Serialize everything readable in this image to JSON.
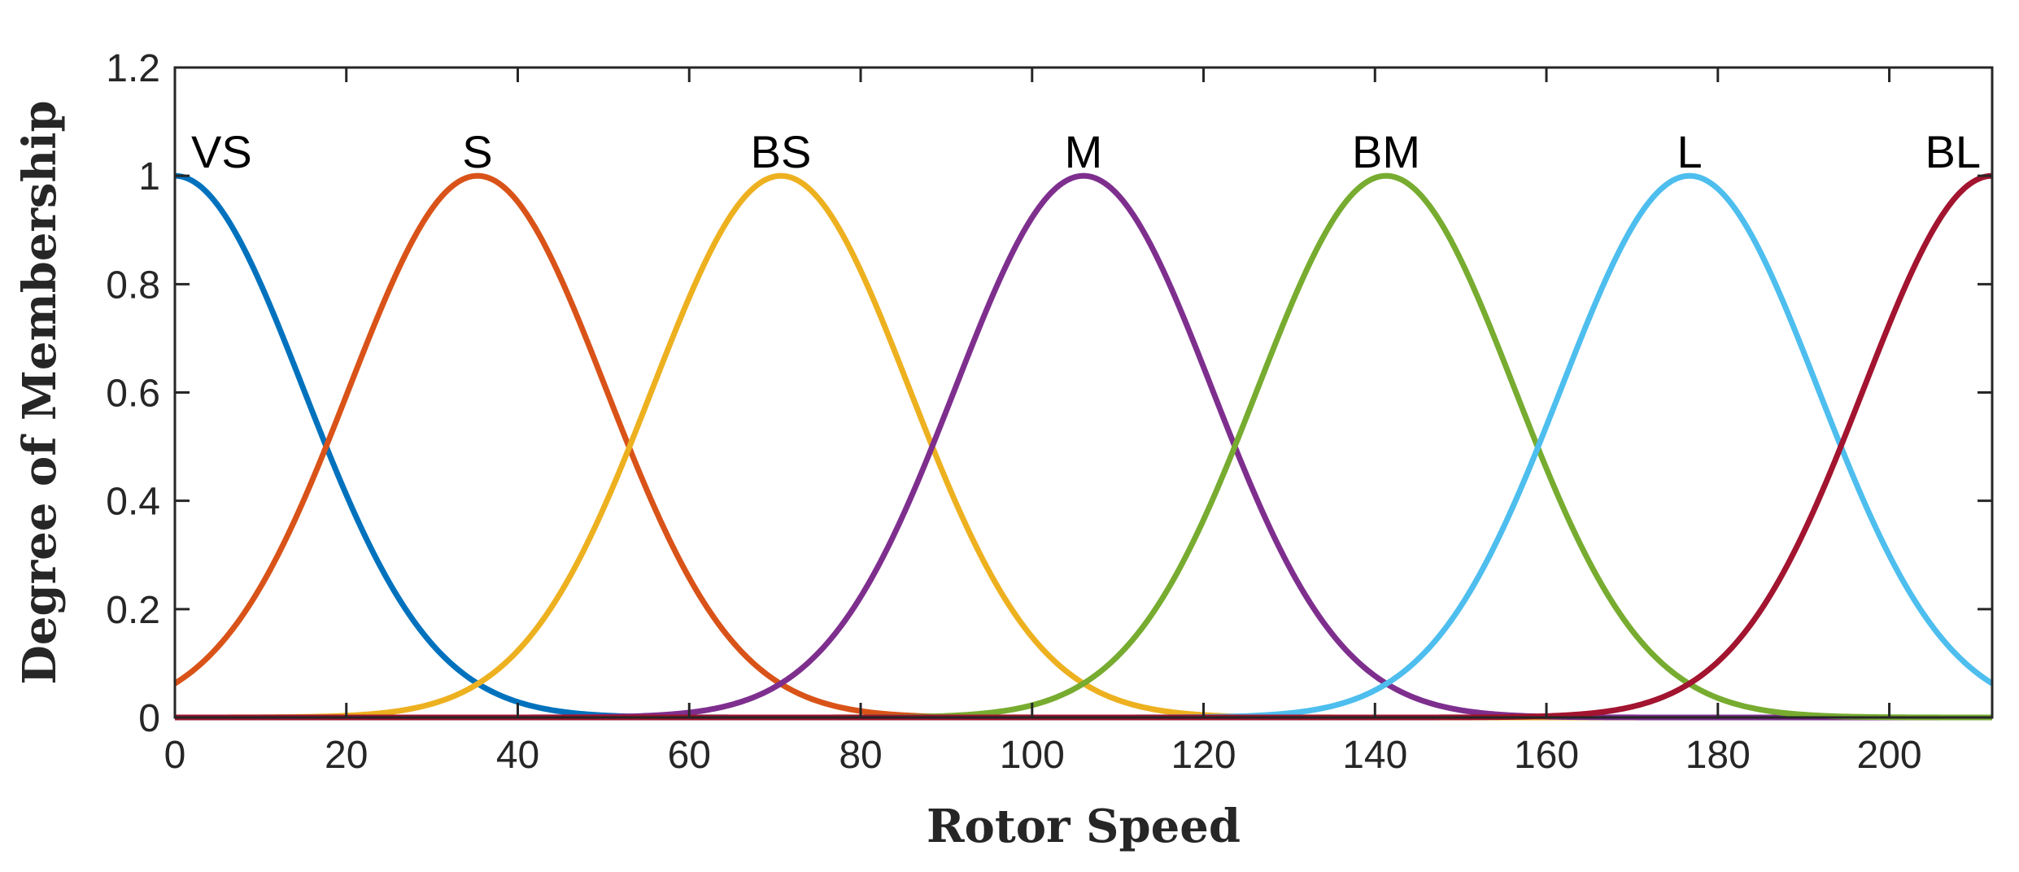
{
  "chart_data": {
    "type": "line",
    "title": "",
    "xlabel": "Rotor Speed",
    "ylabel": "Degree of Membership",
    "xlim": [
      0,
      212
    ],
    "ylim": [
      0,
      1.2
    ],
    "x_ticks": [
      0,
      20,
      40,
      60,
      80,
      100,
      120,
      140,
      160,
      180,
      200
    ],
    "y_ticks": [
      0,
      0.2,
      0.4,
      0.6,
      0.8,
      1,
      1.2
    ],
    "x_tick_labels": [
      "0",
      "20",
      "40",
      "60",
      "80",
      "100",
      "120",
      "140",
      "160",
      "180",
      "200"
    ],
    "y_tick_labels": [
      "0",
      "0.2",
      "0.4",
      "0.6",
      "0.8",
      "1",
      "1.2"
    ],
    "grid": false,
    "box": true,
    "function": "gaussian",
    "sigma": 15,
    "series": [
      {
        "name": "VS",
        "center": 0,
        "color": "#0072BD"
      },
      {
        "name": "S",
        "center": 35.3,
        "color": "#D95319"
      },
      {
        "name": "BS",
        "center": 70.7,
        "color": "#EDB120"
      },
      {
        "name": "M",
        "center": 106,
        "color": "#7E2F8E"
      },
      {
        "name": "BM",
        "center": 141.3,
        "color": "#77AC30"
      },
      {
        "name": "L",
        "center": 176.7,
        "color": "#4DBEEE"
      },
      {
        "name": "BL",
        "center": 212,
        "color": "#A2142F"
      }
    ]
  }
}
